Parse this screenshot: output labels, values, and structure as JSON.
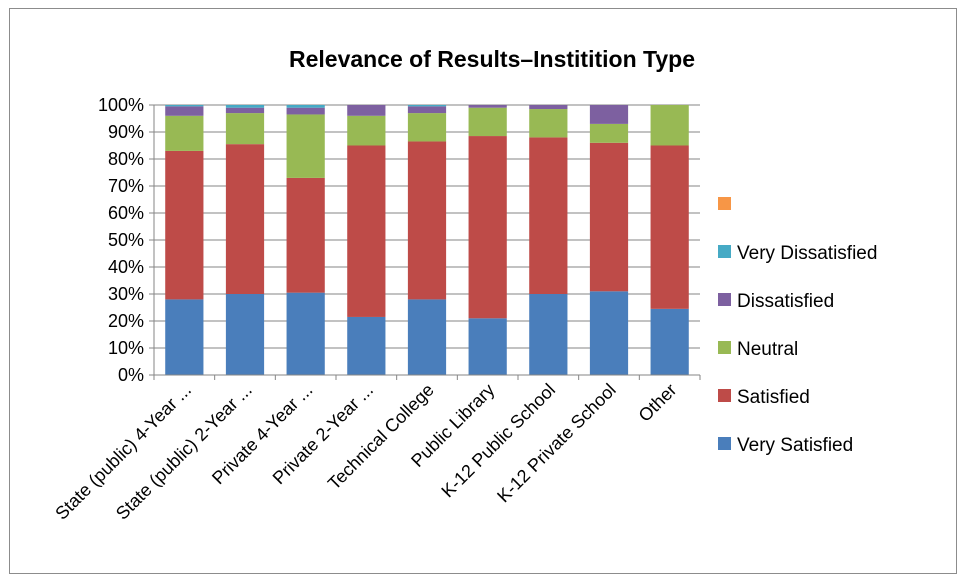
{
  "chart_data": {
    "type": "bar",
    "stacked": true,
    "percent_stacked": true,
    "title": "Relevance of Results–Institition Type",
    "categories": [
      "State (public) 4-Year ...",
      "State (public) 2-Year ...",
      "Private 4-Year ...",
      "Private 2-Year ...",
      "Technical College",
      "Public Library",
      "K-12 Public School",
      "K-12 Private School",
      "Other"
    ],
    "series": [
      {
        "name": "Very Satisfied",
        "color": "#4a7ebb",
        "values": [
          28,
          30,
          30.5,
          21.5,
          28,
          21,
          30,
          31,
          24.5
        ]
      },
      {
        "name": "Satisfied",
        "color": "#be4b48",
        "values": [
          55,
          55.5,
          42.5,
          63.5,
          58.5,
          67.5,
          58,
          55,
          60.5
        ]
      },
      {
        "name": "Neutral",
        "color": "#98b954",
        "values": [
          13,
          11.5,
          23.5,
          11,
          10.5,
          10.5,
          10.5,
          7,
          15
        ]
      },
      {
        "name": "Dissatisfied",
        "color": "#7d60a0",
        "values": [
          3.5,
          2,
          2.5,
          4,
          2.5,
          1,
          1.5,
          7,
          0
        ]
      },
      {
        "name": "Very Dissatisfied",
        "color": "#46aac5",
        "values": [
          0.5,
          1,
          1,
          0,
          0.5,
          0,
          0,
          0,
          0
        ]
      },
      {
        "name": "",
        "color": "#f79646",
        "values": [
          0,
          0,
          0,
          0,
          0,
          0,
          0,
          0,
          0
        ]
      }
    ],
    "yticks": [
      "0%",
      "10%",
      "20%",
      "30%",
      "40%",
      "50%",
      "60%",
      "70%",
      "80%",
      "90%",
      "100%"
    ],
    "ylim": [
      0,
      100
    ],
    "xlabel": "",
    "ylabel": "",
    "grid": true,
    "legend_position": "right"
  }
}
